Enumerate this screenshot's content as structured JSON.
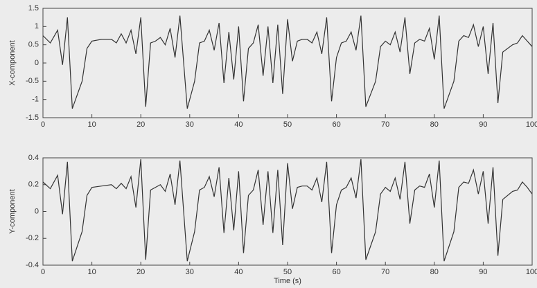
{
  "chart_data": [
    {
      "type": "line",
      "ylabel": "X-component",
      "x": [
        0,
        1.5,
        3,
        4,
        5,
        6,
        8,
        9,
        10,
        12,
        14,
        15,
        16,
        17,
        18,
        19,
        20,
        21,
        22,
        23,
        24,
        25,
        26,
        27,
        28,
        29.5,
        31,
        32,
        33,
        34,
        35,
        36,
        37,
        38,
        39,
        40,
        41,
        42,
        43,
        44,
        45,
        46,
        47,
        48,
        49,
        50,
        51,
        52,
        53,
        54,
        55,
        56,
        57,
        58,
        59,
        60,
        61,
        62,
        63,
        64,
        65,
        66,
        68,
        69,
        70,
        71,
        72,
        73,
        74,
        75,
        76,
        77,
        78,
        79,
        80,
        81,
        82,
        84,
        85,
        86,
        87,
        88,
        89,
        90,
        91,
        92,
        93,
        94,
        96,
        97,
        98,
        99,
        100
      ],
      "values": [
        0.75,
        0.55,
        0.9,
        -0.05,
        1.25,
        -1.25,
        -0.5,
        0.4,
        0.6,
        0.65,
        0.65,
        0.55,
        0.8,
        0.55,
        0.9,
        0.25,
        1.25,
        -1.2,
        0.55,
        0.6,
        0.7,
        0.5,
        0.95,
        0.15,
        1.3,
        -1.25,
        -0.5,
        0.55,
        0.6,
        0.9,
        0.35,
        1.1,
        -0.55,
        0.85,
        -0.45,
        1.0,
        -1.05,
        0.4,
        0.55,
        1.05,
        -0.35,
        1.0,
        -0.55,
        1.05,
        -0.85,
        1.2,
        0.05,
        0.6,
        0.65,
        0.65,
        0.55,
        0.85,
        0.25,
        1.25,
        -1.05,
        0.15,
        0.55,
        0.6,
        0.85,
        0.35,
        1.3,
        -1.2,
        -0.5,
        0.45,
        0.6,
        0.5,
        0.85,
        0.3,
        1.25,
        -0.3,
        0.55,
        0.65,
        0.6,
        0.95,
        0.1,
        1.3,
        -1.25,
        -0.5,
        0.6,
        0.75,
        0.7,
        1.05,
        0.45,
        1.0,
        -0.3,
        1.1,
        -1.1,
        0.3,
        0.5,
        0.55,
        0.75,
        0.6,
        0.45
      ],
      "color": "#333333",
      "xlim": [
        0,
        100
      ],
      "xticks": [
        0,
        10,
        20,
        30,
        40,
        50,
        60,
        70,
        80,
        90,
        100
      ],
      "ylim": [
        -1.5,
        1.5
      ],
      "yticks": [
        -1.5,
        -1,
        -0.5,
        0,
        0.5,
        1,
        1.5
      ]
    },
    {
      "type": "line",
      "ylabel": "Y-component",
      "xlabel": "Time (s)",
      "x": [
        0,
        1.5,
        3,
        4,
        5,
        6,
        8,
        9,
        10,
        12,
        14,
        15,
        16,
        17,
        18,
        19,
        20,
        21,
        22,
        23,
        24,
        25,
        26,
        27,
        28,
        29.5,
        31,
        32,
        33,
        34,
        35,
        36,
        37,
        38,
        39,
        40,
        41,
        42,
        43,
        44,
        45,
        46,
        47,
        48,
        49,
        50,
        51,
        52,
        53,
        54,
        55,
        56,
        57,
        58,
        59,
        60,
        61,
        62,
        63,
        64,
        65,
        66,
        68,
        69,
        70,
        71,
        72,
        73,
        74,
        75,
        76,
        77,
        78,
        79,
        80,
        81,
        82,
        84,
        85,
        86,
        87,
        88,
        89,
        90,
        91,
        92,
        93,
        94,
        96,
        97,
        98,
        99,
        100
      ],
      "values": [
        0.22,
        0.17,
        0.27,
        -0.02,
        0.37,
        -0.37,
        -0.15,
        0.12,
        0.18,
        0.19,
        0.2,
        0.17,
        0.21,
        0.17,
        0.26,
        0.03,
        0.39,
        -0.36,
        0.16,
        0.18,
        0.2,
        0.15,
        0.28,
        0.05,
        0.38,
        -0.37,
        -0.15,
        0.16,
        0.18,
        0.26,
        0.11,
        0.33,
        -0.16,
        0.25,
        -0.14,
        0.3,
        -0.31,
        0.12,
        0.16,
        0.31,
        -0.1,
        0.3,
        -0.16,
        0.31,
        -0.25,
        0.36,
        0.02,
        0.18,
        0.19,
        0.19,
        0.16,
        0.25,
        0.07,
        0.37,
        -0.31,
        0.05,
        0.16,
        0.18,
        0.25,
        0.1,
        0.39,
        -0.36,
        -0.15,
        0.13,
        0.18,
        0.15,
        0.25,
        0.09,
        0.37,
        -0.09,
        0.16,
        0.19,
        0.18,
        0.28,
        0.03,
        0.38,
        -0.37,
        -0.15,
        0.18,
        0.22,
        0.21,
        0.31,
        0.13,
        0.3,
        -0.09,
        0.33,
        -0.33,
        0.09,
        0.15,
        0.16,
        0.22,
        0.18,
        0.13
      ],
      "color": "#333333",
      "xlim": [
        0,
        100
      ],
      "xticks": [
        0,
        10,
        20,
        30,
        40,
        50,
        60,
        70,
        80,
        90,
        100
      ],
      "ylim": [
        -0.4,
        0.4
      ],
      "yticks": [
        -0.4,
        -0.2,
        0,
        0.2,
        0.4
      ]
    }
  ]
}
